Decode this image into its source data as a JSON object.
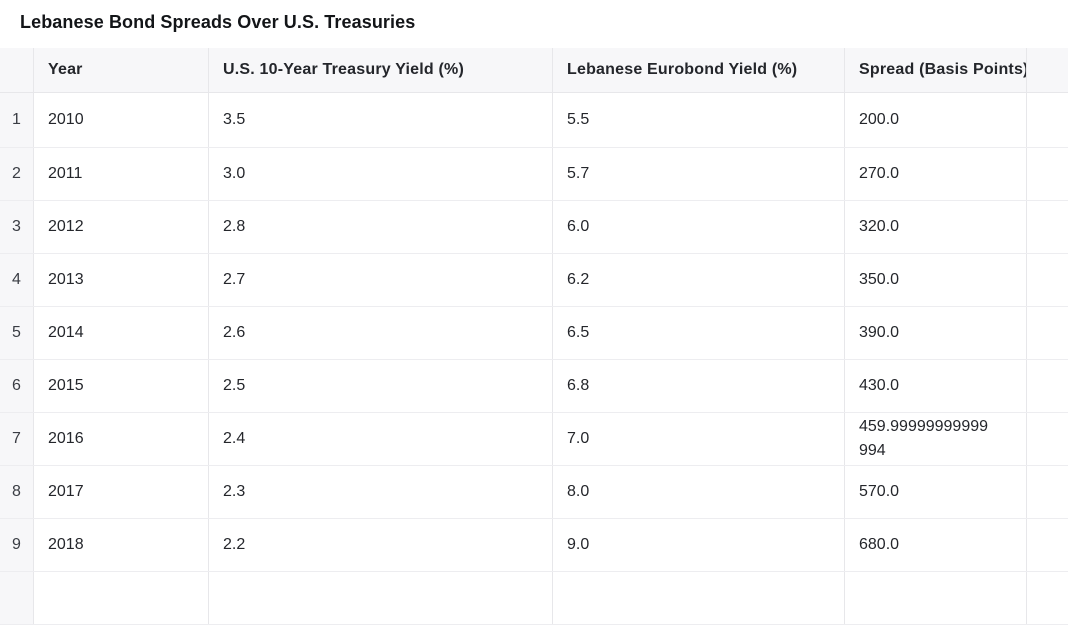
{
  "title": "Lebanese Bond Spreads Over U.S. Treasuries",
  "table": {
    "columns": [
      {
        "key": "index",
        "label": ""
      },
      {
        "key": "year",
        "label": "Year"
      },
      {
        "key": "treasury",
        "label": "U.S. 10-Year Treasury Yield (%)"
      },
      {
        "key": "eurobond",
        "label": "Lebanese Eurobond Yield (%)"
      },
      {
        "key": "spread",
        "label": "Spread (Basis Points)"
      }
    ],
    "rows": [
      {
        "index": "1",
        "year": "2010",
        "treasury": "3.5",
        "eurobond": "5.5",
        "spread": "200.0"
      },
      {
        "index": "2",
        "year": "2011",
        "treasury": "3.0",
        "eurobond": "5.7",
        "spread": "270.0"
      },
      {
        "index": "3",
        "year": "2012",
        "treasury": "2.8",
        "eurobond": "6.0",
        "spread": "320.0"
      },
      {
        "index": "4",
        "year": "2013",
        "treasury": "2.7",
        "eurobond": "6.2",
        "spread": "350.0"
      },
      {
        "index": "5",
        "year": "2014",
        "treasury": "2.6",
        "eurobond": "6.5",
        "spread": "390.0"
      },
      {
        "index": "6",
        "year": "2015",
        "treasury": "2.5",
        "eurobond": "6.8",
        "spread": "430.0"
      },
      {
        "index": "7",
        "year": "2016",
        "treasury": "2.4",
        "eurobond": "7.0",
        "spread": "459.99999999999994"
      },
      {
        "index": "8",
        "year": "2017",
        "treasury": "2.3",
        "eurobond": "8.0",
        "spread": "570.0"
      },
      {
        "index": "9",
        "year": "2018",
        "treasury": "2.2",
        "eurobond": "9.0",
        "spread": "680.0"
      }
    ]
  },
  "theme": {
    "header_bg": "#f7f7f9",
    "vertical_border": "#e7e7ea",
    "horizontal_border": "#ededf0",
    "text": "#24262b"
  }
}
